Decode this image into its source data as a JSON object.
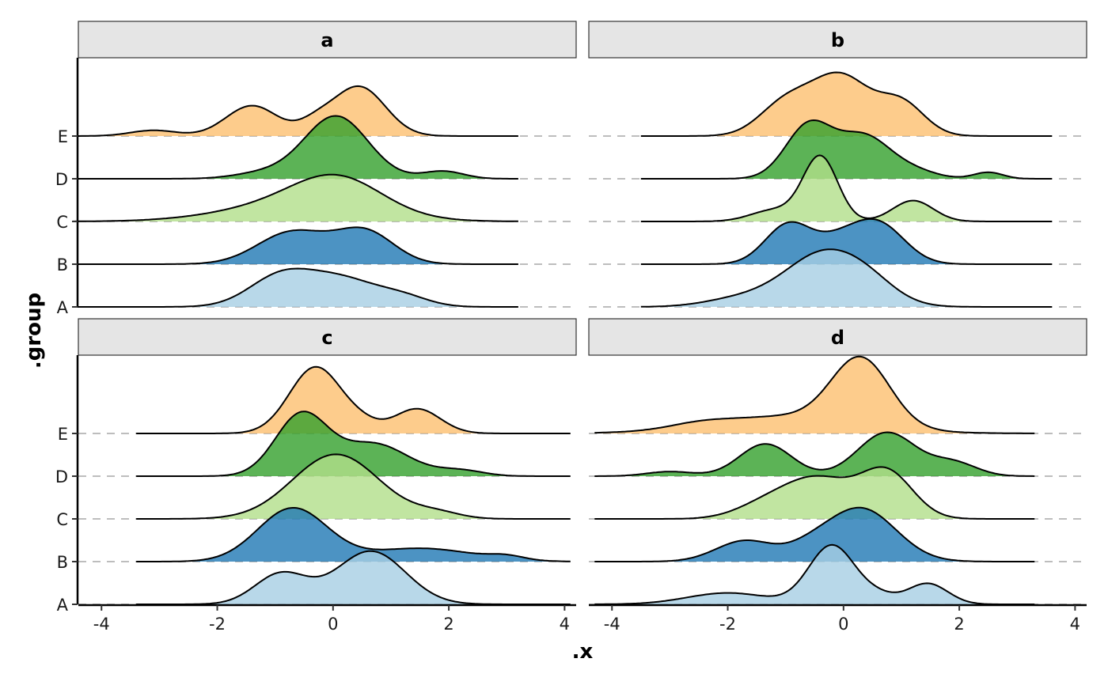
{
  "chart_data": {
    "type": "ridgeline",
    "xlabel": ".x",
    "ylabel": ".group",
    "groups": [
      "A",
      "B",
      "C",
      "D",
      "E"
    ],
    "x_ticks": [
      -4,
      -2,
      0,
      2,
      4
    ],
    "xlim": [
      -4.4,
      4.2
    ],
    "grid": "dashed horizontal baselines",
    "legend": "none",
    "colors": {
      "A": "#a6cee3",
      "B": "#1f78b4",
      "C": "#b2df8a",
      "D": "#33a02c",
      "E": "#fdbf6f"
    },
    "facets": [
      {
        "label": "a",
        "x_range": [
          -4.5,
          3.2
        ],
        "ridges": [
          {
            "group": "A",
            "peaks": [
              [
                -0.9,
                0.55,
                0.8
              ],
              [
                0.15,
                0.6,
                0.7
              ],
              [
                1.2,
                0.45,
                0.25
              ]
            ]
          },
          {
            "group": "B",
            "peaks": [
              [
                -0.7,
                0.6,
                0.85
              ],
              [
                0.55,
                0.5,
                0.85
              ]
            ]
          },
          {
            "group": "C",
            "peaks": [
              [
                -0.6,
                1.2,
                0.5
              ],
              [
                0.1,
                0.75,
                0.8
              ]
            ]
          },
          {
            "group": "D",
            "peaks": [
              [
                0.05,
                0.55,
                1.65
              ],
              [
                -1.2,
                0.5,
                0.15
              ],
              [
                1.9,
                0.35,
                0.2
              ]
            ]
          },
          {
            "group": "E",
            "peaks": [
              [
                -3.1,
                0.4,
                0.15
              ],
              [
                -1.4,
                0.45,
                0.8
              ],
              [
                0.45,
                0.45,
                1.3
              ],
              [
                -0.3,
                0.3,
                0.3
              ]
            ]
          }
        ]
      },
      {
        "label": "b",
        "x_range": [
          -3.5,
          3.6
        ],
        "ridges": [
          {
            "group": "A",
            "peaks": [
              [
                -0.3,
                0.7,
                1.45
              ],
              [
                -1.8,
                0.6,
                0.2
              ],
              [
                0.5,
                0.45,
                0.25
              ]
            ]
          },
          {
            "group": "B",
            "peaks": [
              [
                -0.95,
                0.4,
                1.05
              ],
              [
                0.6,
                0.45,
                1.05
              ],
              [
                -0.1,
                0.4,
                0.5
              ]
            ]
          },
          {
            "group": "C",
            "peaks": [
              [
                -0.4,
                0.3,
                1.7
              ],
              [
                -1.2,
                0.4,
                0.3
              ],
              [
                1.2,
                0.35,
                0.55
              ]
            ]
          },
          {
            "group": "D",
            "peaks": [
              [
                -0.6,
                0.4,
                1.4
              ],
              [
                0.35,
                0.45,
                1.1
              ],
              [
                2.5,
                0.25,
                0.17
              ],
              [
                1.2,
                0.4,
                0.2
              ]
            ]
          },
          {
            "group": "E",
            "peaks": [
              [
                -0.05,
                0.5,
                1.55
              ],
              [
                -1.0,
                0.45,
                0.85
              ],
              [
                1.0,
                0.4,
                0.85
              ]
            ]
          }
        ]
      },
      {
        "label": "c",
        "x_range": [
          -3.4,
          4.1
        ],
        "ridges": [
          {
            "group": "A",
            "peaks": [
              [
                -0.9,
                0.45,
                0.8
              ],
              [
                0.65,
                0.6,
                1.4
              ]
            ]
          },
          {
            "group": "B",
            "peaks": [
              [
                -0.7,
                0.6,
                1.4
              ],
              [
                1.5,
                0.9,
                0.35
              ],
              [
                3.0,
                0.3,
                0.1
              ]
            ]
          },
          {
            "group": "C",
            "peaks": [
              [
                0.05,
                0.75,
                1.7
              ],
              [
                1.8,
                0.4,
                0.15
              ]
            ]
          },
          {
            "group": "D",
            "peaks": [
              [
                -0.55,
                0.45,
                1.6
              ],
              [
                0.7,
                0.6,
                0.85
              ],
              [
                2.2,
                0.4,
                0.15
              ]
            ]
          },
          {
            "group": "E",
            "peaks": [
              [
                -0.3,
                0.45,
                1.75
              ],
              [
                1.45,
                0.4,
                0.65
              ],
              [
                0.5,
                0.3,
                0.2
              ]
            ]
          }
        ]
      },
      {
        "label": "d",
        "x_range": [
          -4.3,
          3.3
        ],
        "ridges": [
          {
            "group": "A",
            "peaks": [
              [
                -0.2,
                0.4,
                1.55
              ],
              [
                1.45,
                0.35,
                0.55
              ],
              [
                -2.0,
                0.7,
                0.3
              ],
              [
                0.6,
                0.3,
                0.2
              ]
            ]
          },
          {
            "group": "B",
            "peaks": [
              [
                0.3,
                0.6,
                1.4
              ],
              [
                -1.7,
                0.5,
                0.55
              ],
              [
                -0.6,
                0.4,
                0.25
              ]
            ]
          },
          {
            "group": "C",
            "peaks": [
              [
                -0.45,
                0.6,
                1.05
              ],
              [
                0.75,
                0.45,
                1.2
              ],
              [
                -1.4,
                0.5,
                0.3
              ]
            ]
          },
          {
            "group": "D",
            "peaks": [
              [
                -1.35,
                0.45,
                0.85
              ],
              [
                0.75,
                0.5,
                1.15
              ],
              [
                1.9,
                0.4,
                0.35
              ],
              [
                -3.0,
                0.4,
                0.12
              ]
            ]
          },
          {
            "group": "E",
            "peaks": [
              [
                0.3,
                0.5,
                1.75
              ],
              [
                -1.0,
                1.3,
                0.45
              ],
              [
                -2.5,
                0.5,
                0.1
              ]
            ]
          }
        ]
      }
    ]
  }
}
